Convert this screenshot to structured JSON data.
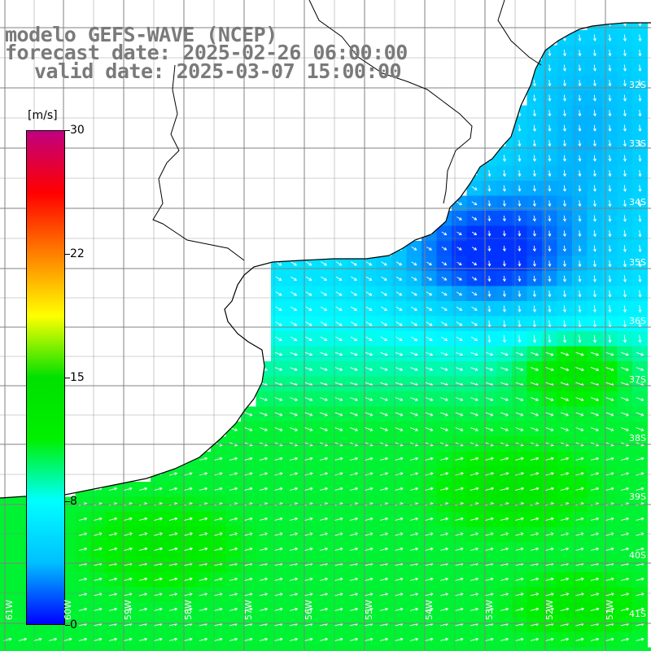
{
  "header": {
    "model_line": "modelo GEFS-WAVE (NCEP)",
    "forecast_line": "forecast date: 2025-02-26 06:00:00",
    "valid_line": "valid date: 2025-03-07 15:00:00"
  },
  "colorbar": {
    "unit": "[m/s]",
    "ticks": [
      "30",
      "22",
      "15",
      "8",
      "0"
    ],
    "min": 0,
    "max": 30,
    "colors": [
      "#0000ff",
      "#00c0ff",
      "#00ffff",
      "#00f000",
      "#00e000",
      "#ffff00",
      "#ff8000",
      "#ff0000",
      "#c00080"
    ]
  },
  "map": {
    "field": "wind speed",
    "lat_labels": [
      "32S",
      "33S",
      "34S",
      "35S",
      "36S",
      "37S",
      "38S",
      "39S",
      "40S",
      "41S"
    ],
    "lon_labels": [
      "61W",
      "60W",
      "59W",
      "58W",
      "57W",
      "56W",
      "55W",
      "54W",
      "53W",
      "52W",
      "51W"
    ],
    "colors": {
      "land": "#ffffff",
      "coast": "#000000",
      "grid": "#808080",
      "arrow": "#ffffff",
      "title": "#7a7a7a"
    }
  }
}
